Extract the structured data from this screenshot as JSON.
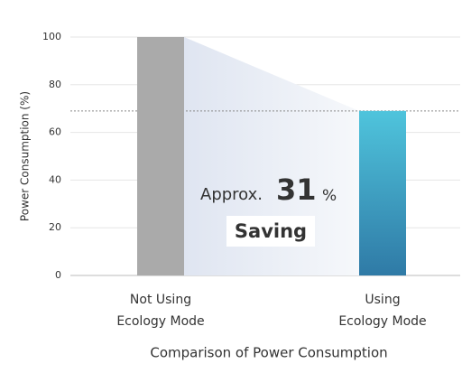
{
  "chart_data": {
    "type": "bar",
    "x_label": "Comparison of Power Consumption",
    "y_label": "Power Consumption (%)",
    "categories": [
      "Not Using\nEcology Mode",
      "Using\nEcology Mode"
    ],
    "values": [
      100,
      69
    ],
    "colors": [
      "#aaaaaa",
      "#45b8d4"
    ],
    "ylim": [
      0,
      100
    ],
    "yticks": [
      0,
      20,
      40,
      60,
      80,
      100
    ],
    "grid": true,
    "annotation": {
      "prefix": "Approx.",
      "value": 31,
      "unit": "%",
      "label": "Saving"
    }
  }
}
